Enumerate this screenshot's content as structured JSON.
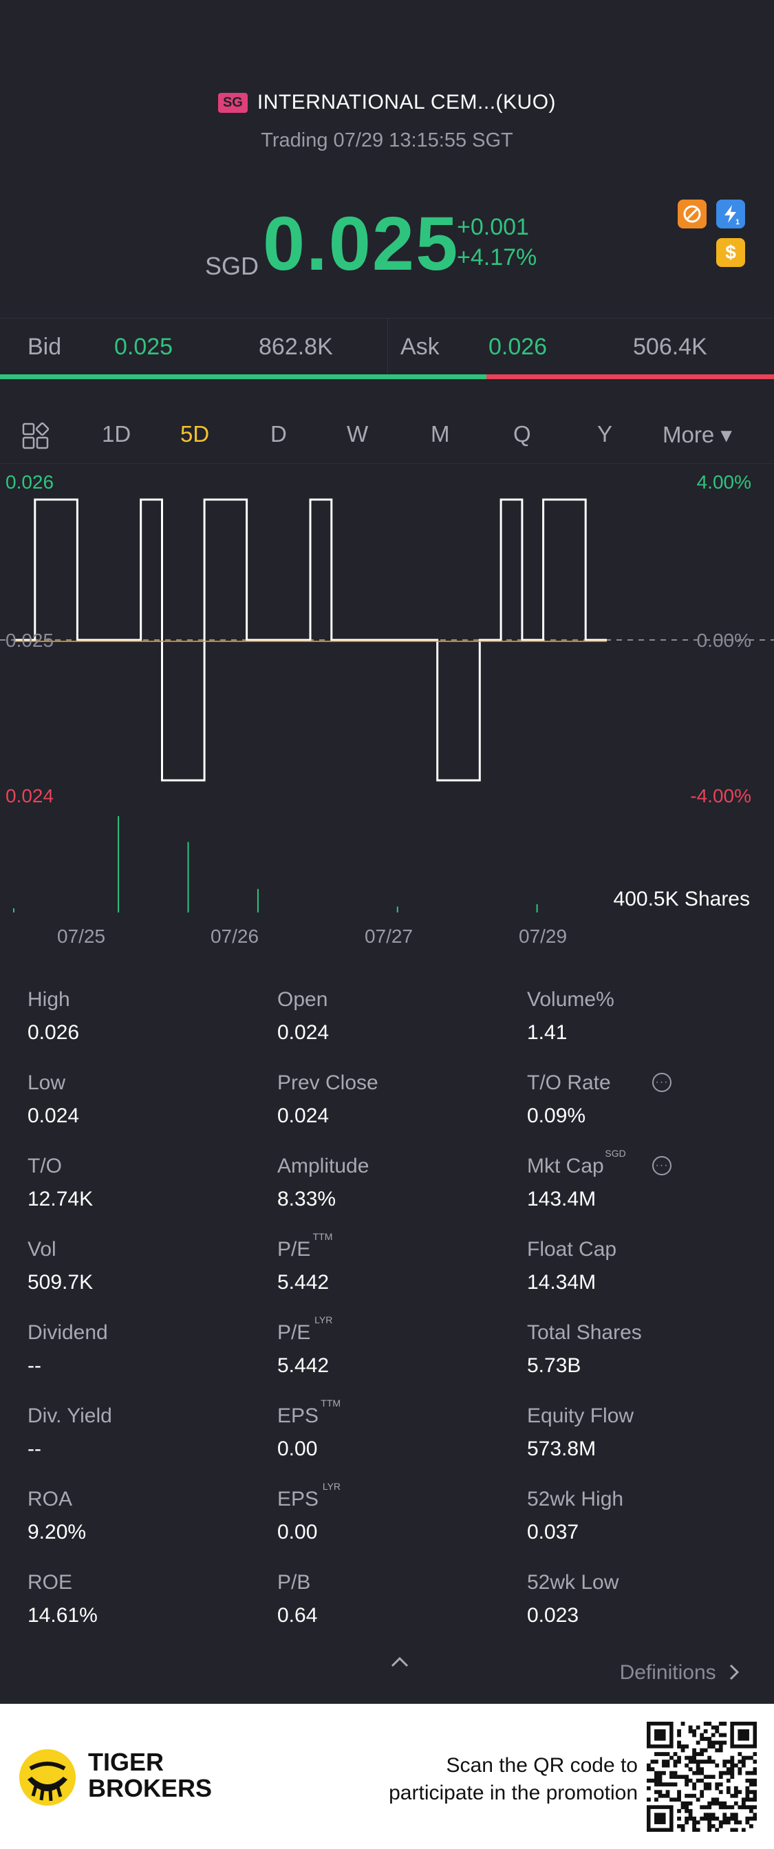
{
  "header": {
    "market_badge": "SG",
    "title": "INTERNATIONAL CEM...(KUO)",
    "status": "Trading 07/29 13:15:55 SGT",
    "currency": "SGD",
    "price": "0.025",
    "change": "+0.001",
    "change_pct": "+4.17%",
    "icons": [
      "short-ban-icon",
      "flash-icon",
      "dollar-icon"
    ],
    "flash_badge": "1"
  },
  "bidask": {
    "bid_label": "Bid",
    "bid_price": "0.025",
    "bid_volume": "862.8K",
    "ask_label": "Ask",
    "ask_price": "0.026",
    "ask_volume": "506.4K",
    "bid_ratio": 0.628
  },
  "tabs": {
    "items": [
      "1D",
      "5D",
      "D",
      "W",
      "M",
      "Q",
      "Y",
      "More ▾"
    ],
    "active": "5D"
  },
  "chart_data": {
    "type": "line",
    "y_left_ticks": [
      "0.026",
      "0.025",
      "0.024"
    ],
    "y_right_ticks": [
      "4.00%",
      "0.00%",
      "-4.00%"
    ],
    "x_ticks": [
      "07/25",
      "07/26",
      "07/27",
      "07/29"
    ],
    "ylim": [
      0.024,
      0.026
    ],
    "volume_label": "400.5K Shares",
    "price_series": [
      0.025,
      0.026,
      0.026,
      0.025,
      0.025,
      0.025,
      0.026,
      0.024,
      0.024,
      0.026,
      0.026,
      0.025,
      0.025,
      0.025,
      0.026,
      0.025,
      0.025,
      0.025,
      0.025,
      0.025,
      0.024,
      0.024,
      0.025,
      0.026,
      0.025,
      0.026,
      0.026,
      0.025,
      0.025
    ],
    "volume_series": [
      3,
      0,
      0,
      82,
      0,
      60,
      0,
      20,
      0,
      0,
      0,
      5,
      0,
      0,
      0,
      7,
      0,
      0
    ],
    "colors": {
      "price": "#ffffff",
      "avg": "#f0a020",
      "volume": "#2fc47e",
      "up": "#2fc47e",
      "down": "#e84358"
    }
  },
  "stats": [
    {
      "label": "High",
      "value": "0.026",
      "sup": ""
    },
    {
      "label": "Open",
      "value": "0.024",
      "sup": ""
    },
    {
      "label": "Volume%",
      "value": "1.41",
      "sup": ""
    },
    {
      "label": "Low",
      "value": "0.024",
      "sup": ""
    },
    {
      "label": "Prev Close",
      "value": "0.024",
      "sup": ""
    },
    {
      "label": "T/O Rate",
      "value": "0.09%",
      "sup": ""
    },
    {
      "label": "T/O",
      "value": "12.74K",
      "sup": ""
    },
    {
      "label": "Amplitude",
      "value": "8.33%",
      "sup": ""
    },
    {
      "label": "Mkt Cap",
      "value": "143.4M",
      "sup": "SGD"
    },
    {
      "label": "Vol",
      "value": "509.7K",
      "sup": ""
    },
    {
      "label": "P/E",
      "value": "5.442",
      "sup": "TTM"
    },
    {
      "label": "Float Cap",
      "value": "14.34M",
      "sup": ""
    },
    {
      "label": "Dividend",
      "value": "--",
      "sup": ""
    },
    {
      "label": "P/E",
      "value": "5.442",
      "sup": "LYR"
    },
    {
      "label": "Total Shares",
      "value": "5.73B",
      "sup": ""
    },
    {
      "label": "Div. Yield",
      "value": "--",
      "sup": ""
    },
    {
      "label": "EPS",
      "value": "0.00",
      "sup": "TTM"
    },
    {
      "label": "Equity Flow",
      "value": "573.8M",
      "sup": ""
    },
    {
      "label": "ROA",
      "value": "9.20%",
      "sup": ""
    },
    {
      "label": "EPS",
      "value": "0.00",
      "sup": "LYR"
    },
    {
      "label": "52wk High",
      "value": "0.037",
      "sup": ""
    },
    {
      "label": "ROE",
      "value": "14.61%",
      "sup": ""
    },
    {
      "label": "P/B",
      "value": "0.64",
      "sup": ""
    },
    {
      "label": "52wk Low",
      "value": "0.023",
      "sup": ""
    }
  ],
  "info_marker": "···",
  "definitions_label": "Definitions",
  "footer": {
    "brand_line1": "TIGER",
    "brand_line2": "BROKERS",
    "promo_line1": "Scan the QR code to",
    "promo_line2": "participate in the promotion"
  }
}
